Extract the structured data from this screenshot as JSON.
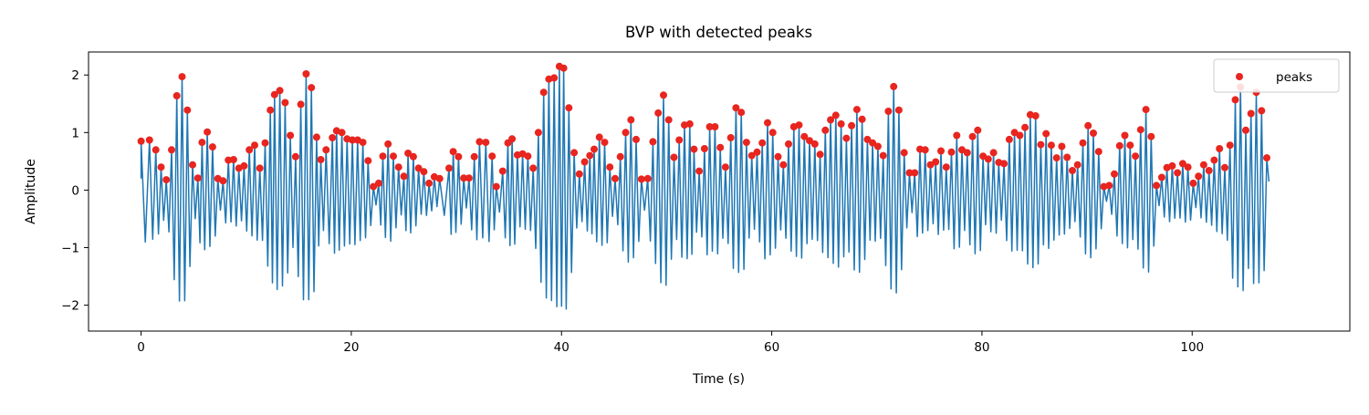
{
  "chart_data": {
    "type": "line",
    "title": "BVP with detected peaks",
    "xlabel": "Time (s)",
    "ylabel": "Amplitude",
    "xlim": [
      -5,
      115
    ],
    "ylim": [
      -2.45,
      2.4
    ],
    "x_ticks": [
      0,
      20,
      40,
      60,
      80,
      100
    ],
    "y_ticks": [
      2,
      1,
      0,
      -1,
      -2
    ],
    "y_tick_labels": [
      "2",
      "1",
      "0",
      "−1",
      "−2"
    ],
    "grid": false,
    "legend_placement": "top-right",
    "colors": {
      "signal": "#1f77b4",
      "peaks": "#e8251f"
    },
    "series": [
      {
        "name": "peaks",
        "kind": "scatter",
        "points": [
          [
            0.0,
            0.85
          ],
          [
            0.8,
            0.87
          ],
          [
            1.4,
            0.7
          ],
          [
            1.9,
            0.4
          ],
          [
            2.4,
            0.18
          ],
          [
            2.9,
            0.7
          ],
          [
            3.4,
            1.64
          ],
          [
            3.9,
            1.97
          ],
          [
            4.4,
            1.39
          ],
          [
            4.9,
            0.44
          ],
          [
            5.4,
            0.21
          ],
          [
            5.8,
            0.83
          ],
          [
            6.3,
            1.01
          ],
          [
            6.8,
            0.75
          ],
          [
            7.3,
            0.2
          ],
          [
            7.8,
            0.16
          ],
          [
            8.3,
            0.52
          ],
          [
            8.8,
            0.53
          ],
          [
            9.3,
            0.38
          ],
          [
            9.8,
            0.42
          ],
          [
            10.3,
            0.7
          ],
          [
            10.8,
            0.78
          ],
          [
            11.3,
            0.38
          ],
          [
            11.8,
            0.82
          ],
          [
            12.3,
            1.39
          ],
          [
            12.7,
            1.66
          ],
          [
            13.2,
            1.73
          ],
          [
            13.7,
            1.52
          ],
          [
            14.2,
            0.95
          ],
          [
            14.7,
            0.58
          ],
          [
            15.2,
            1.49
          ],
          [
            15.7,
            2.02
          ],
          [
            16.2,
            1.78
          ],
          [
            16.7,
            0.92
          ],
          [
            17.1,
            0.53
          ],
          [
            17.6,
            0.7
          ],
          [
            18.2,
            0.91
          ],
          [
            18.6,
            1.03
          ],
          [
            19.1,
            1.0
          ],
          [
            19.6,
            0.89
          ],
          [
            20.1,
            0.87
          ],
          [
            20.6,
            0.87
          ],
          [
            21.1,
            0.83
          ],
          [
            21.6,
            0.51
          ],
          [
            22.1,
            0.06
          ],
          [
            22.6,
            0.12
          ],
          [
            23.0,
            0.59
          ],
          [
            23.5,
            0.8
          ],
          [
            24.0,
            0.59
          ],
          [
            24.5,
            0.4
          ],
          [
            25.0,
            0.24
          ],
          [
            25.4,
            0.64
          ],
          [
            25.9,
            0.58
          ],
          [
            26.4,
            0.38
          ],
          [
            26.9,
            0.32
          ],
          [
            27.4,
            0.12
          ],
          [
            27.9,
            0.23
          ],
          [
            28.4,
            0.2
          ],
          [
            29.3,
            0.38
          ],
          [
            29.7,
            0.67
          ],
          [
            30.2,
            0.58
          ],
          [
            30.7,
            0.21
          ],
          [
            31.2,
            0.21
          ],
          [
            31.7,
            0.58
          ],
          [
            32.2,
            0.84
          ],
          [
            32.8,
            0.83
          ],
          [
            33.4,
            0.59
          ],
          [
            33.8,
            0.06
          ],
          [
            34.4,
            0.33
          ],
          [
            34.9,
            0.82
          ],
          [
            35.3,
            0.89
          ],
          [
            35.8,
            0.61
          ],
          [
            36.3,
            0.63
          ],
          [
            36.8,
            0.59
          ],
          [
            37.3,
            0.38
          ],
          [
            37.8,
            1.0
          ],
          [
            38.3,
            1.7
          ],
          [
            38.8,
            1.93
          ],
          [
            39.3,
            1.95
          ],
          [
            39.8,
            2.15
          ],
          [
            40.2,
            2.12
          ],
          [
            40.7,
            1.43
          ],
          [
            41.2,
            0.65
          ],
          [
            41.7,
            0.28
          ],
          [
            42.2,
            0.49
          ],
          [
            42.7,
            0.6
          ],
          [
            43.1,
            0.71
          ],
          [
            43.6,
            0.92
          ],
          [
            44.1,
            0.83
          ],
          [
            44.6,
            0.4
          ],
          [
            45.1,
            0.2
          ],
          [
            45.6,
            0.58
          ],
          [
            46.1,
            1.0
          ],
          [
            46.6,
            1.22
          ],
          [
            47.1,
            0.88
          ],
          [
            47.6,
            0.19
          ],
          [
            48.2,
            0.2
          ],
          [
            48.7,
            0.84
          ],
          [
            49.2,
            1.34
          ],
          [
            49.7,
            1.65
          ],
          [
            50.2,
            1.22
          ],
          [
            50.7,
            0.57
          ],
          [
            51.2,
            0.87
          ],
          [
            51.7,
            1.13
          ],
          [
            52.2,
            1.15
          ],
          [
            52.6,
            0.71
          ],
          [
            53.1,
            0.33
          ],
          [
            53.6,
            0.72
          ],
          [
            54.1,
            1.1
          ],
          [
            54.6,
            1.1
          ],
          [
            55.1,
            0.74
          ],
          [
            55.6,
            0.4
          ],
          [
            56.1,
            0.91
          ],
          [
            56.6,
            1.43
          ],
          [
            57.1,
            1.35
          ],
          [
            57.6,
            0.83
          ],
          [
            58.1,
            0.6
          ],
          [
            58.6,
            0.66
          ],
          [
            59.1,
            0.82
          ],
          [
            59.6,
            1.17
          ],
          [
            60.1,
            1.0
          ],
          [
            60.6,
            0.58
          ],
          [
            61.1,
            0.44
          ],
          [
            61.6,
            0.8
          ],
          [
            62.1,
            1.1
          ],
          [
            62.6,
            1.13
          ],
          [
            63.1,
            0.93
          ],
          [
            63.6,
            0.86
          ],
          [
            64.1,
            0.8
          ],
          [
            64.6,
            0.62
          ],
          [
            65.1,
            1.04
          ],
          [
            65.6,
            1.22
          ],
          [
            66.1,
            1.3
          ],
          [
            66.6,
            1.15
          ],
          [
            67.1,
            0.9
          ],
          [
            67.6,
            1.12
          ],
          [
            68.1,
            1.4
          ],
          [
            68.6,
            1.23
          ],
          [
            69.1,
            0.88
          ],
          [
            69.6,
            0.82
          ],
          [
            70.1,
            0.76
          ],
          [
            70.6,
            0.6
          ],
          [
            71.1,
            1.37
          ],
          [
            71.6,
            1.8
          ],
          [
            72.1,
            1.39
          ],
          [
            72.6,
            0.65
          ],
          [
            73.1,
            0.3
          ],
          [
            73.6,
            0.3
          ],
          [
            74.1,
            0.71
          ],
          [
            74.6,
            0.7
          ],
          [
            75.1,
            0.44
          ],
          [
            75.6,
            0.49
          ],
          [
            76.1,
            0.68
          ],
          [
            76.6,
            0.4
          ],
          [
            77.1,
            0.66
          ],
          [
            77.6,
            0.95
          ],
          [
            78.1,
            0.7
          ],
          [
            78.6,
            0.65
          ],
          [
            79.1,
            0.93
          ],
          [
            79.6,
            1.04
          ],
          [
            80.1,
            0.59
          ],
          [
            80.6,
            0.54
          ],
          [
            81.1,
            0.65
          ],
          [
            81.6,
            0.48
          ],
          [
            82.1,
            0.46
          ],
          [
            82.6,
            0.88
          ],
          [
            83.1,
            1.0
          ],
          [
            83.6,
            0.95
          ],
          [
            84.1,
            1.09
          ],
          [
            84.6,
            1.31
          ],
          [
            85.1,
            1.29
          ],
          [
            85.6,
            0.79
          ],
          [
            86.1,
            0.98
          ],
          [
            86.6,
            0.78
          ],
          [
            87.1,
            0.56
          ],
          [
            87.6,
            0.76
          ],
          [
            88.1,
            0.57
          ],
          [
            88.6,
            0.34
          ],
          [
            89.1,
            0.44
          ],
          [
            89.6,
            0.82
          ],
          [
            90.1,
            1.12
          ],
          [
            90.6,
            0.99
          ],
          [
            91.1,
            0.67
          ],
          [
            91.6,
            0.06
          ],
          [
            92.1,
            0.08
          ],
          [
            92.6,
            0.28
          ],
          [
            93.1,
            0.77
          ],
          [
            93.6,
            0.95
          ],
          [
            94.1,
            0.78
          ],
          [
            94.6,
            0.59
          ],
          [
            95.1,
            1.05
          ],
          [
            95.6,
            1.4
          ],
          [
            96.1,
            0.93
          ],
          [
            96.6,
            0.08
          ],
          [
            97.1,
            0.22
          ],
          [
            97.6,
            0.39
          ],
          [
            98.1,
            0.42
          ],
          [
            98.6,
            0.3
          ],
          [
            99.1,
            0.46
          ],
          [
            99.6,
            0.4
          ],
          [
            100.1,
            0.12
          ],
          [
            100.6,
            0.24
          ],
          [
            101.1,
            0.44
          ],
          [
            101.6,
            0.34
          ],
          [
            102.1,
            0.52
          ],
          [
            102.6,
            0.72
          ],
          [
            103.1,
            0.39
          ],
          [
            103.6,
            0.78
          ],
          [
            104.1,
            1.57
          ],
          [
            104.6,
            1.79
          ],
          [
            105.1,
            1.04
          ],
          [
            105.6,
            1.33
          ],
          [
            106.1,
            1.7
          ],
          [
            106.6,
            1.38
          ],
          [
            107.1,
            0.56
          ]
        ]
      }
    ]
  },
  "legend": {
    "items": [
      {
        "label": "peaks"
      }
    ]
  }
}
